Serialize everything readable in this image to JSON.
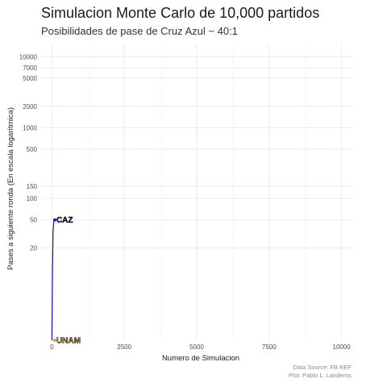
{
  "chart_data": {
    "type": "line",
    "title": "Simulacion Monte Carlo de 10,000 partidos",
    "subtitle": "Posibilidades de pase de Cruz Azul ~ 40:1",
    "xlabel": "Numero de Simulacion",
    "ylabel": "Pases a siguiente ronda (En escala logarítmica)",
    "xlim": [
      -400,
      10400
    ],
    "x_ticks": [
      0,
      2500,
      5000,
      7500,
      10000
    ],
    "x_tick_labels": [
      "0",
      "2500",
      "5000",
      "7500",
      "10000"
    ],
    "ylim": [
      1,
      15000
    ],
    "y_scale": "log",
    "y_ticks": [
      20,
      50,
      100,
      150,
      500,
      1000,
      2000,
      5000,
      7000,
      10000
    ],
    "y_tick_labels": [
      "20",
      "50",
      "100",
      "150",
      "500",
      "1000",
      "2000",
      "5000",
      "7000",
      "10000"
    ],
    "grid": true,
    "series": [
      {
        "name": "CAZ",
        "color": "#1f1fb4",
        "label_fill": "#1e1e8c",
        "x": [
          1,
          20,
          40,
          60,
          80,
          100
        ],
        "y": [
          1,
          10,
          35,
          45,
          49,
          50
        ]
      },
      {
        "name": "UNAM",
        "color": "#c8a84b",
        "label_fill": "#c8a84b",
        "x": [
          1,
          20,
          40,
          60,
          80,
          100
        ],
        "y": [
          1,
          1,
          1,
          1,
          1,
          1
        ]
      }
    ],
    "caption": [
      "Data Source: FB REF",
      "Plot: Pablo L. Landeros"
    ]
  }
}
